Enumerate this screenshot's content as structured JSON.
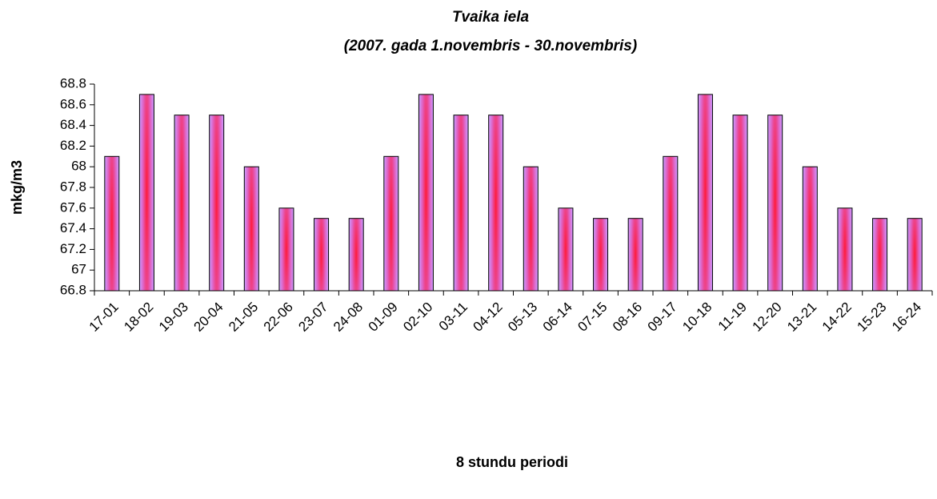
{
  "chart_data": {
    "type": "bar",
    "title": "Tvaika iela",
    "subtitle": "(2007. gada 1.novembris - 30.novembris)",
    "x_label": "8 stundu periodi",
    "y_label": "mkg/m3",
    "categories": [
      "17-01",
      "18-02",
      "19-03",
      "20-04",
      "21-05",
      "22-06",
      "23-07",
      "24-08",
      "01-09",
      "02-10",
      "03-11",
      "04-12",
      "05-13",
      "06-14",
      "07-15",
      "08-16",
      "09-17",
      "10-18",
      "11-19",
      "12-20",
      "13-21",
      "14-22",
      "15-23",
      "16-24"
    ],
    "values": [
      68.1,
      68.7,
      68.5,
      68.5,
      68.0,
      67.6,
      67.5,
      67.5,
      68.1,
      68.7,
      68.5,
      68.5,
      68.0,
      67.6,
      67.5,
      67.5,
      68.1,
      68.7,
      68.5,
      68.5,
      68.0,
      67.6,
      67.5,
      67.5
    ],
    "color": "#cc99ff",
    "ylim": [
      66.8,
      68.8
    ],
    "yticks": [
      66.8,
      67,
      67.2,
      67.4,
      67.6,
      67.8,
      68,
      68.2,
      68.4,
      68.6,
      68.8
    ],
    "grid": false
  }
}
